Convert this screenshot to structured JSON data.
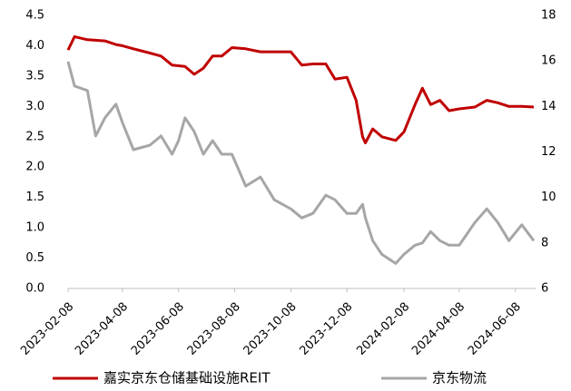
{
  "chart_data": {
    "type": "line",
    "x": [
      "2023-02-08",
      "2023-02-15",
      "2023-03-01",
      "2023-03-10",
      "2023-03-20",
      "2023-04-01",
      "2023-04-08",
      "2023-04-20",
      "2023-05-08",
      "2023-05-20",
      "2023-06-01",
      "2023-06-08",
      "2023-06-15",
      "2023-06-25",
      "2023-07-05",
      "2023-07-15",
      "2023-07-25",
      "2023-08-05",
      "2023-08-20",
      "2023-09-05",
      "2023-09-20",
      "2023-10-08",
      "2023-10-20",
      "2023-11-01",
      "2023-11-15",
      "2023-11-25",
      "2023-12-08",
      "2023-12-18",
      "2023-12-25",
      "2023-12-28",
      "2024-01-05",
      "2024-01-15",
      "2024-01-30",
      "2024-02-08",
      "2024-02-20",
      "2024-02-28",
      "2024-03-08",
      "2024-03-18",
      "2024-03-28",
      "2024-04-08",
      "2024-04-25",
      "2024-05-08",
      "2024-05-20",
      "2024-06-01",
      "2024-06-15",
      "2024-06-28"
    ],
    "series": [
      {
        "name": "嘉实京东仓储基础设施REIT",
        "color": "#c00000",
        "axis": "y",
        "values": [
          3.93,
          4.15,
          4.1,
          4.09,
          4.08,
          4.02,
          4.0,
          3.95,
          3.88,
          3.83,
          3.68,
          3.67,
          3.66,
          3.53,
          3.63,
          3.83,
          3.83,
          3.97,
          3.95,
          3.9,
          3.9,
          3.9,
          3.68,
          3.7,
          3.7,
          3.45,
          3.48,
          3.1,
          2.5,
          2.4,
          2.63,
          2.5,
          2.44,
          2.58,
          3.03,
          3.3,
          3.03,
          3.1,
          2.93,
          2.96,
          2.99,
          3.1,
          3.06,
          3.0,
          3.0,
          2.99
        ]
      },
      {
        "name": "京东物流",
        "color": "#a6a6a6",
        "axis": "y2",
        "values": [
          15.97,
          14.9,
          14.7,
          12.7,
          13.5,
          14.1,
          13.3,
          12.1,
          12.3,
          12.7,
          11.9,
          12.5,
          13.5,
          12.9,
          11.9,
          12.5,
          11.9,
          11.9,
          10.5,
          10.9,
          9.9,
          9.5,
          9.1,
          9.3,
          10.1,
          9.9,
          9.3,
          9.3,
          9.7,
          9.1,
          8.1,
          7.5,
          7.1,
          7.5,
          7.9,
          8.0,
          8.5,
          8.1,
          7.9,
          7.9,
          8.9,
          9.5,
          8.9,
          8.1,
          8.8,
          8.1
        ]
      }
    ],
    "xlim": [
      "2023-02-08",
      "2024-06-30"
    ],
    "xticks": [
      "2023-02-08",
      "2023-04-08",
      "2023-06-08",
      "2023-08-08",
      "2023-10-08",
      "2023-12-08",
      "2024-02-08",
      "2024-04-08",
      "2024-06-08"
    ],
    "ylim": [
      0,
      4.5
    ],
    "yticks": [
      {
        "value": 0,
        "label": "0.0"
      },
      0.5,
      {
        "value": 1,
        "label": "1.0"
      },
      1.5,
      {
        "value": 2,
        "label": "2.0"
      },
      2.5,
      {
        "value": 3,
        "label": "3.0"
      },
      3.5,
      {
        "value": 4,
        "label": "4.0"
      },
      4.5
    ],
    "y2lim": [
      6,
      18
    ],
    "y2ticks": [
      6,
      8,
      10,
      12,
      14,
      16,
      18
    ],
    "legend": "bottom"
  }
}
